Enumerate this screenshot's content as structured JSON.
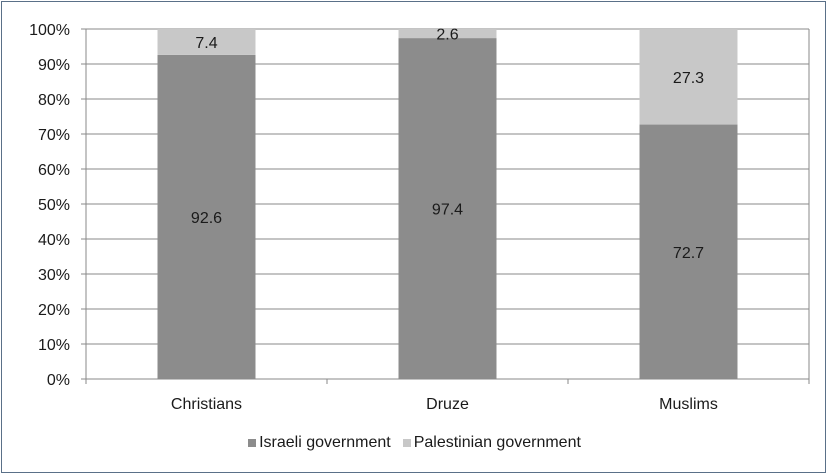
{
  "chart_data": {
    "type": "bar",
    "stacked": true,
    "categories": [
      "Christians",
      "Druze",
      "Muslims"
    ],
    "series": [
      {
        "name": "Israeli government",
        "values": [
          92.6,
          97.4,
          72.7
        ],
        "color": "#8c8c8c"
      },
      {
        "name": "Palestinian government",
        "values": [
          7.4,
          2.6,
          27.3
        ],
        "color": "#c8c8c8"
      }
    ],
    "data_labels": {
      "Israeli government": [
        "92.6",
        "97.4",
        "72.7"
      ],
      "Palestinian government": [
        "7.4",
        "2.6",
        "27.3"
      ]
    },
    "y_ticks": [
      "0%",
      "10%",
      "20%",
      "30%",
      "40%",
      "50%",
      "60%",
      "70%",
      "80%",
      "90%",
      "100%"
    ],
    "ylim": [
      0,
      100
    ],
    "grid": true,
    "legend_position": "bottom",
    "title": "",
    "xlabel": "",
    "ylabel": ""
  }
}
